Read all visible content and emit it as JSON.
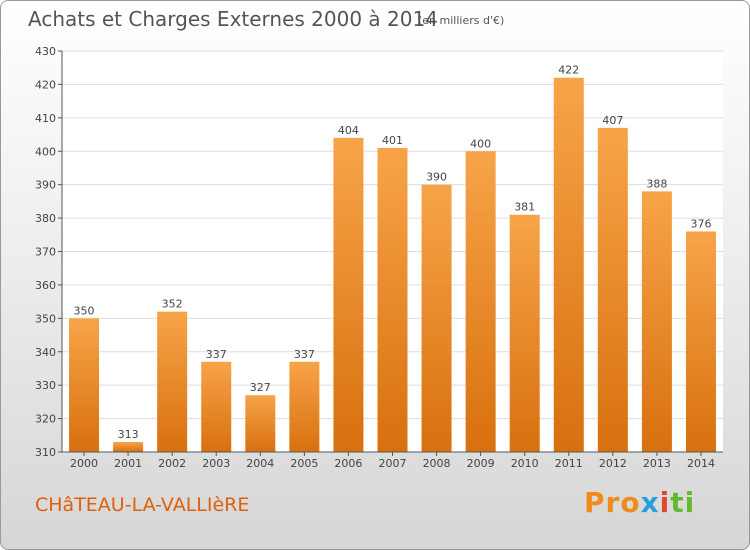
{
  "chart_data": {
    "type": "bar",
    "title": "Achats et Charges Externes 2000 à 2014",
    "subtitle": "(en milliers d'€)",
    "categories": [
      "2000",
      "2001",
      "2002",
      "2003",
      "2004",
      "2005",
      "2006",
      "2007",
      "2008",
      "2009",
      "2010",
      "2011",
      "2012",
      "2013",
      "2014"
    ],
    "values": [
      350,
      313,
      352,
      337,
      327,
      337,
      404,
      401,
      390,
      400,
      381,
      422,
      407,
      388,
      376
    ],
    "ylim": [
      310,
      430
    ],
    "yticks": [
      310,
      320,
      330,
      340,
      350,
      360,
      370,
      380,
      390,
      400,
      410,
      420,
      430
    ],
    "grid": true,
    "bar_color_top": "#f7a449",
    "bar_color_bottom": "#d8700e",
    "xlabel": "",
    "ylabel": ""
  },
  "location": "CHâTEAU-LA-VALLIèRE",
  "logo": {
    "text": "Proxiti",
    "parts": [
      "Pro",
      "x",
      "i",
      "ti"
    ]
  },
  "colors": {
    "accent": "#e0600a",
    "axis": "#555555",
    "grid": "#dddddd"
  }
}
